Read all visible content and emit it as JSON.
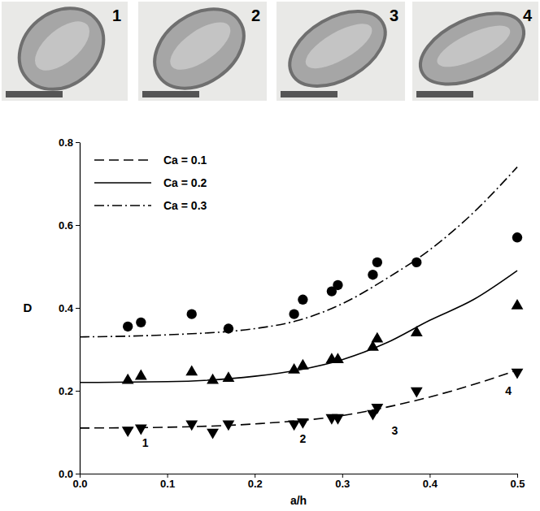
{
  "chart_data": {
    "type": "scatter",
    "x_label": "a/h",
    "y_label": "D",
    "xlim": [
      0,
      0.5
    ],
    "ylim": [
      0,
      0.8
    ],
    "xticks": [
      {
        "value": 0,
        "label": "0.0"
      },
      0.1,
      0.2,
      0.3,
      0.4,
      0.5
    ],
    "yticks": [
      {
        "value": 0,
        "label": "0.0"
      },
      0.2,
      0.4,
      0.6,
      0.8
    ],
    "grid": false,
    "legend": "upper left",
    "series": [
      {
        "name": "Ca = 0.1",
        "type": "line",
        "line_style": "dashed",
        "color": "#000000",
        "x": [
          0,
          0.1,
          0.2,
          0.3,
          0.35,
          0.4,
          0.45,
          0.5
        ],
        "values": [
          0.11,
          0.112,
          0.12,
          0.14,
          0.16,
          0.185,
          0.215,
          0.25
        ]
      },
      {
        "name": "Ca = 0.2",
        "type": "line",
        "line_style": "solid",
        "color": "#000000",
        "x": [
          0,
          0.1,
          0.2,
          0.25,
          0.3,
          0.35,
          0.4,
          0.45,
          0.5
        ],
        "values": [
          0.22,
          0.222,
          0.235,
          0.25,
          0.275,
          0.315,
          0.37,
          0.42,
          0.49
        ]
      },
      {
        "name": "Ca = 0.3",
        "type": "line",
        "line_style": "dashdot",
        "color": "#000000",
        "x": [
          0,
          0.1,
          0.2,
          0.25,
          0.3,
          0.35,
          0.4,
          0.45,
          0.5
        ],
        "values": [
          0.33,
          0.335,
          0.35,
          0.37,
          0.41,
          0.47,
          0.54,
          0.63,
          0.74
        ]
      },
      {
        "type": "scatter",
        "marker": "triangle-down",
        "color": "#000000",
        "x": [
          0.055,
          0.07,
          0.128,
          0.152,
          0.17,
          0.245,
          0.255,
          0.288,
          0.295,
          0.335,
          0.34,
          0.385,
          0.5
        ],
        "values": [
          0.105,
          0.11,
          0.12,
          0.1,
          0.12,
          0.12,
          0.125,
          0.135,
          0.135,
          0.145,
          0.16,
          0.2,
          0.245
        ]
      },
      {
        "type": "scatter",
        "marker": "triangle-up",
        "color": "#000000",
        "x": [
          0.055,
          0.07,
          0.128,
          0.152,
          0.17,
          0.245,
          0.255,
          0.288,
          0.295,
          0.335,
          0.34,
          0.385,
          0.5
        ],
        "values": [
          0.225,
          0.235,
          0.245,
          0.225,
          0.23,
          0.25,
          0.26,
          0.275,
          0.275,
          0.305,
          0.325,
          0.34,
          0.405
        ]
      },
      {
        "type": "scatter",
        "marker": "circle",
        "color": "#000000",
        "x": [
          0.055,
          0.07,
          0.128,
          0.17,
          0.245,
          0.255,
          0.288,
          0.295,
          0.335,
          0.34,
          0.385,
          0.5
        ],
        "values": [
          0.355,
          0.365,
          0.385,
          0.35,
          0.385,
          0.42,
          0.44,
          0.455,
          0.48,
          0.51,
          0.51,
          0.57
        ]
      }
    ],
    "annotations": [
      {
        "text": "1",
        "x": 0.075,
        "y": 0.065
      },
      {
        "text": "2",
        "x": 0.255,
        "y": 0.075
      },
      {
        "text": "3",
        "x": 0.36,
        "y": 0.095
      },
      {
        "text": "4",
        "x": 0.49,
        "y": 0.19
      }
    ]
  },
  "photos": [
    {
      "label": "1"
    },
    {
      "label": "2"
    },
    {
      "label": "3"
    },
    {
      "label": "4"
    }
  ]
}
